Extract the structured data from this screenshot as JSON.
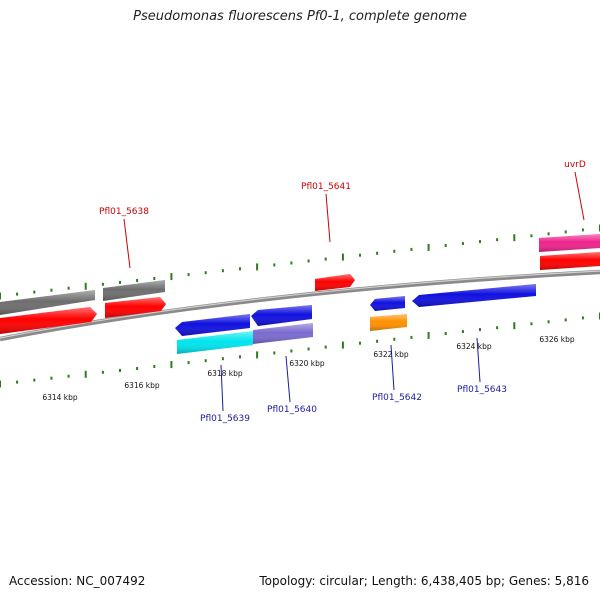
{
  "title": "Pseudomonas fluorescens Pf0-1, complete genome",
  "footer": {
    "accession": "Accession: NC_007492",
    "topology": "Topology: circular; Length: 6,438,405 bp; Genes: 5,816"
  },
  "colors": {
    "backbone": "#8a8a8a",
    "tick": "#2e7d1c",
    "label_top": "#cc0000",
    "label_bottom": "#1a1aa8"
  },
  "tick_labels": [
    {
      "text": "6314 kbp",
      "pos": 6314
    },
    {
      "text": "6316 kbp",
      "pos": 6316
    },
    {
      "text": "6318 kbp",
      "pos": 6318
    },
    {
      "text": "6320 kbp",
      "pos": 6320
    },
    {
      "text": "6322 kbp",
      "pos": 6322
    },
    {
      "text": "6324 kbp",
      "pos": 6324
    },
    {
      "text": "6326 kbp",
      "pos": 6326
    }
  ],
  "gene_labels": [
    {
      "text": "Pfl01_5638",
      "strand": "top"
    },
    {
      "text": "Pfl01_5641",
      "strand": "top"
    },
    {
      "text": "uvrD",
      "strand": "top"
    },
    {
      "text": "Pfl01_5639",
      "strand": "bottom"
    },
    {
      "text": "Pfl01_5640",
      "strand": "bottom"
    },
    {
      "text": "Pfl01_5642",
      "strand": "bottom"
    },
    {
      "text": "Pfl01_5643",
      "strand": "bottom"
    }
  ],
  "features": [
    {
      "name": "feature-gray-1",
      "color": "#6e6e6e",
      "direction": "none"
    },
    {
      "name": "feature-gray-2",
      "color": "#6e6e6e",
      "direction": "none"
    },
    {
      "name": "feature-red-1",
      "color": "#ff0000",
      "direction": "forward"
    },
    {
      "name": "feature-red-2",
      "color": "#ff0000",
      "direction": "forward"
    },
    {
      "name": "feature-red-3",
      "color": "#ff0000",
      "direction": "forward"
    },
    {
      "name": "feature-pink",
      "color": "#f0238c",
      "direction": "none"
    },
    {
      "name": "feature-red-4",
      "color": "#ff0000",
      "direction": "none"
    },
    {
      "name": "feature-blue-1",
      "color": "#1010e0",
      "direction": "reverse"
    },
    {
      "name": "feature-blue-2",
      "color": "#1010e0",
      "direction": "reverse"
    },
    {
      "name": "feature-blue-3",
      "color": "#1010e0",
      "direction": "reverse"
    },
    {
      "name": "feature-blue-4",
      "color": "#1010e0",
      "direction": "reverse"
    },
    {
      "name": "feature-cyan",
      "color": "#00e5ee",
      "direction": "none"
    },
    {
      "name": "feature-purple",
      "color": "#7a6ad0",
      "direction": "none"
    },
    {
      "name": "feature-orange",
      "color": "#ff9100",
      "direction": "none"
    }
  ]
}
